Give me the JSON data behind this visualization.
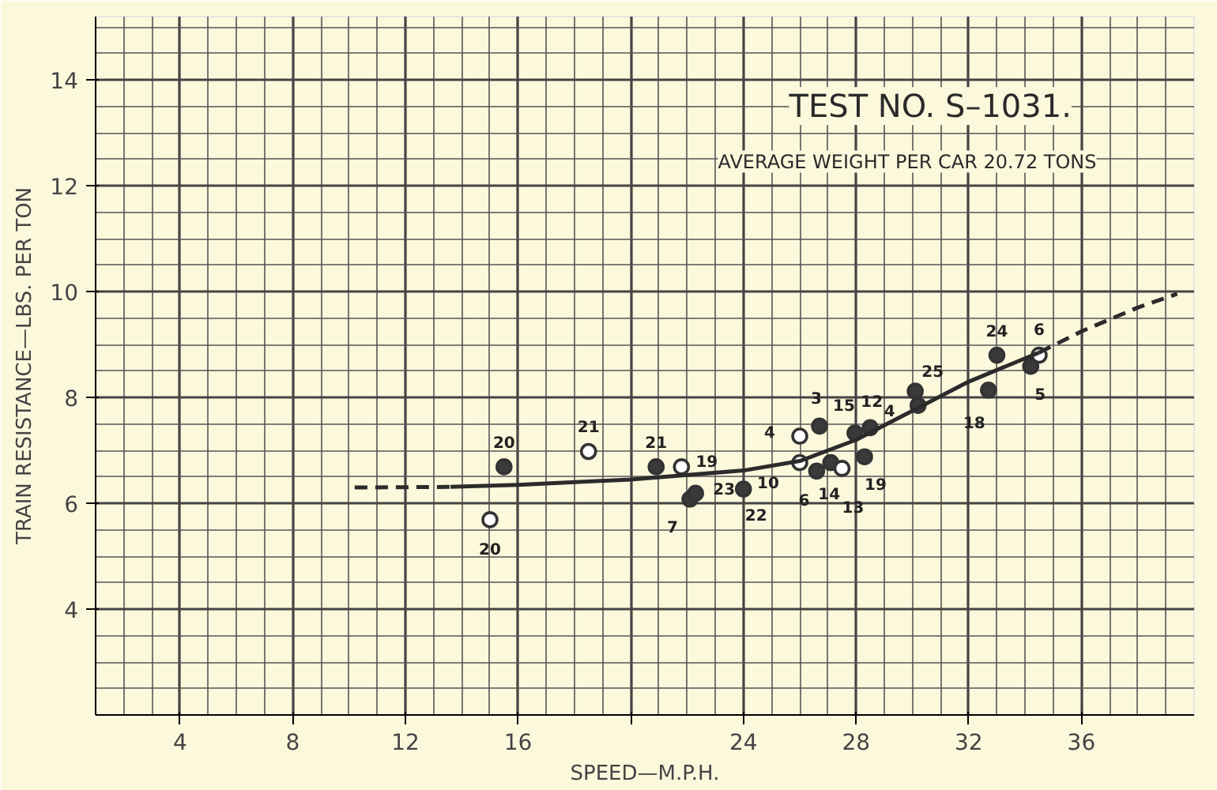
{
  "chart_data": {
    "type": "scatter",
    "title": "TEST NO. S–1031.",
    "subtitle": "AVERAGE WEIGHT PER CAR 20.72 TONS",
    "xlabel": "SPEED—M.P.H.",
    "ylabel": "TRAIN RESISTANCE—LBS. PER TON",
    "xlim": [
      1,
      40
    ],
    "ylim": [
      2,
      15.2
    ],
    "xticks": [
      4,
      8,
      12,
      16,
      {
        "value": 20,
        "label": null
      },
      24,
      28,
      32,
      36
    ],
    "yticks": [
      4,
      6,
      8,
      10,
      12,
      14
    ],
    "grid": true,
    "marker": "circle",
    "series": [
      {
        "color": "#3a3a3a",
        "x": [
          15.5,
          20.9,
          22.1,
          22.3,
          24.0,
          26.7,
          26.6,
          27.1,
          27.96,
          28.5,
          28.3,
          30.1,
          30.2,
          33.0,
          32.7,
          34.2
        ],
        "values": [
          6.69,
          6.69,
          6.08,
          6.19,
          6.27,
          7.46,
          6.61,
          6.77,
          7.33,
          7.43,
          6.88,
          8.12,
          7.85,
          8.8,
          8.14,
          8.59
        ]
      },
      {
        "color": "#ffffff",
        "x": [
          15.0,
          18.5,
          21.8,
          26.0,
          26.0,
          27.5,
          34.5
        ],
        "values": [
          5.69,
          6.98,
          6.69,
          7.27,
          6.77,
          6.66,
          8.8
        ]
      },
      {
        "type": "line",
        "color": "#2b2b2b",
        "line_style": "dashed",
        "marker": "none",
        "x": [
          10.2,
          13.6
        ],
        "values": [
          6.3,
          6.31
        ]
      },
      {
        "type": "line",
        "color": "#2b2b2b",
        "line_style": "solid",
        "marker": "none",
        "x": [
          13.6,
          16,
          20,
          24,
          26,
          28,
          30,
          32,
          34.5
        ],
        "values": [
          6.31,
          6.35,
          6.45,
          6.62,
          6.8,
          7.2,
          7.75,
          8.3,
          8.85
        ]
      },
      {
        "type": "line",
        "color": "#2b2b2b",
        "line_style": "dashed",
        "marker": "none",
        "x": [
          34.5,
          36,
          38,
          39.4
        ],
        "values": [
          8.85,
          9.25,
          9.7,
          9.96
        ]
      }
    ],
    "annotations": [
      {
        "text": "20",
        "x": 15.5,
        "y": 6.69
      },
      {
        "text": "21",
        "x": 20.9,
        "y": 6.69
      },
      {
        "text": "7",
        "x": 22.1,
        "y": 6.08
      },
      {
        "text": "23",
        "x": 22.3,
        "y": 6.19
      },
      {
        "text": "22",
        "x": 24.0,
        "y": 6.27
      },
      {
        "text": "3",
        "x": 26.7,
        "y": 7.46
      },
      {
        "text": "6",
        "x": 26.6,
        "y": 6.61
      },
      {
        "text": "14",
        "x": 27.1,
        "y": 6.77
      },
      {
        "text": "15",
        "x": 27.96,
        "y": 7.33
      },
      {
        "text": "12",
        "x": 28.5,
        "y": 7.43
      },
      {
        "text": "19",
        "x": 28.3,
        "y": 6.88
      },
      {
        "text": "25",
        "x": 30.1,
        "y": 8.12
      },
      {
        "text": "4",
        "x": 30.2,
        "y": 7.85
      },
      {
        "text": "24",
        "x": 33.0,
        "y": 8.8
      },
      {
        "text": "18",
        "x": 32.7,
        "y": 8.14
      },
      {
        "text": "5",
        "x": 34.2,
        "y": 8.59
      },
      {
        "text": "20",
        "x": 15.0,
        "y": 5.69
      },
      {
        "text": "21",
        "x": 18.5,
        "y": 6.98
      },
      {
        "text": "19",
        "x": 21.8,
        "y": 6.69
      },
      {
        "text": "4",
        "x": 26.0,
        "y": 7.27
      },
      {
        "text": "10",
        "x": 26.0,
        "y": 6.77
      },
      {
        "text": "13",
        "x": 27.5,
        "y": 6.66
      },
      {
        "text": "6",
        "x": 34.5,
        "y": 8.8
      }
    ]
  }
}
